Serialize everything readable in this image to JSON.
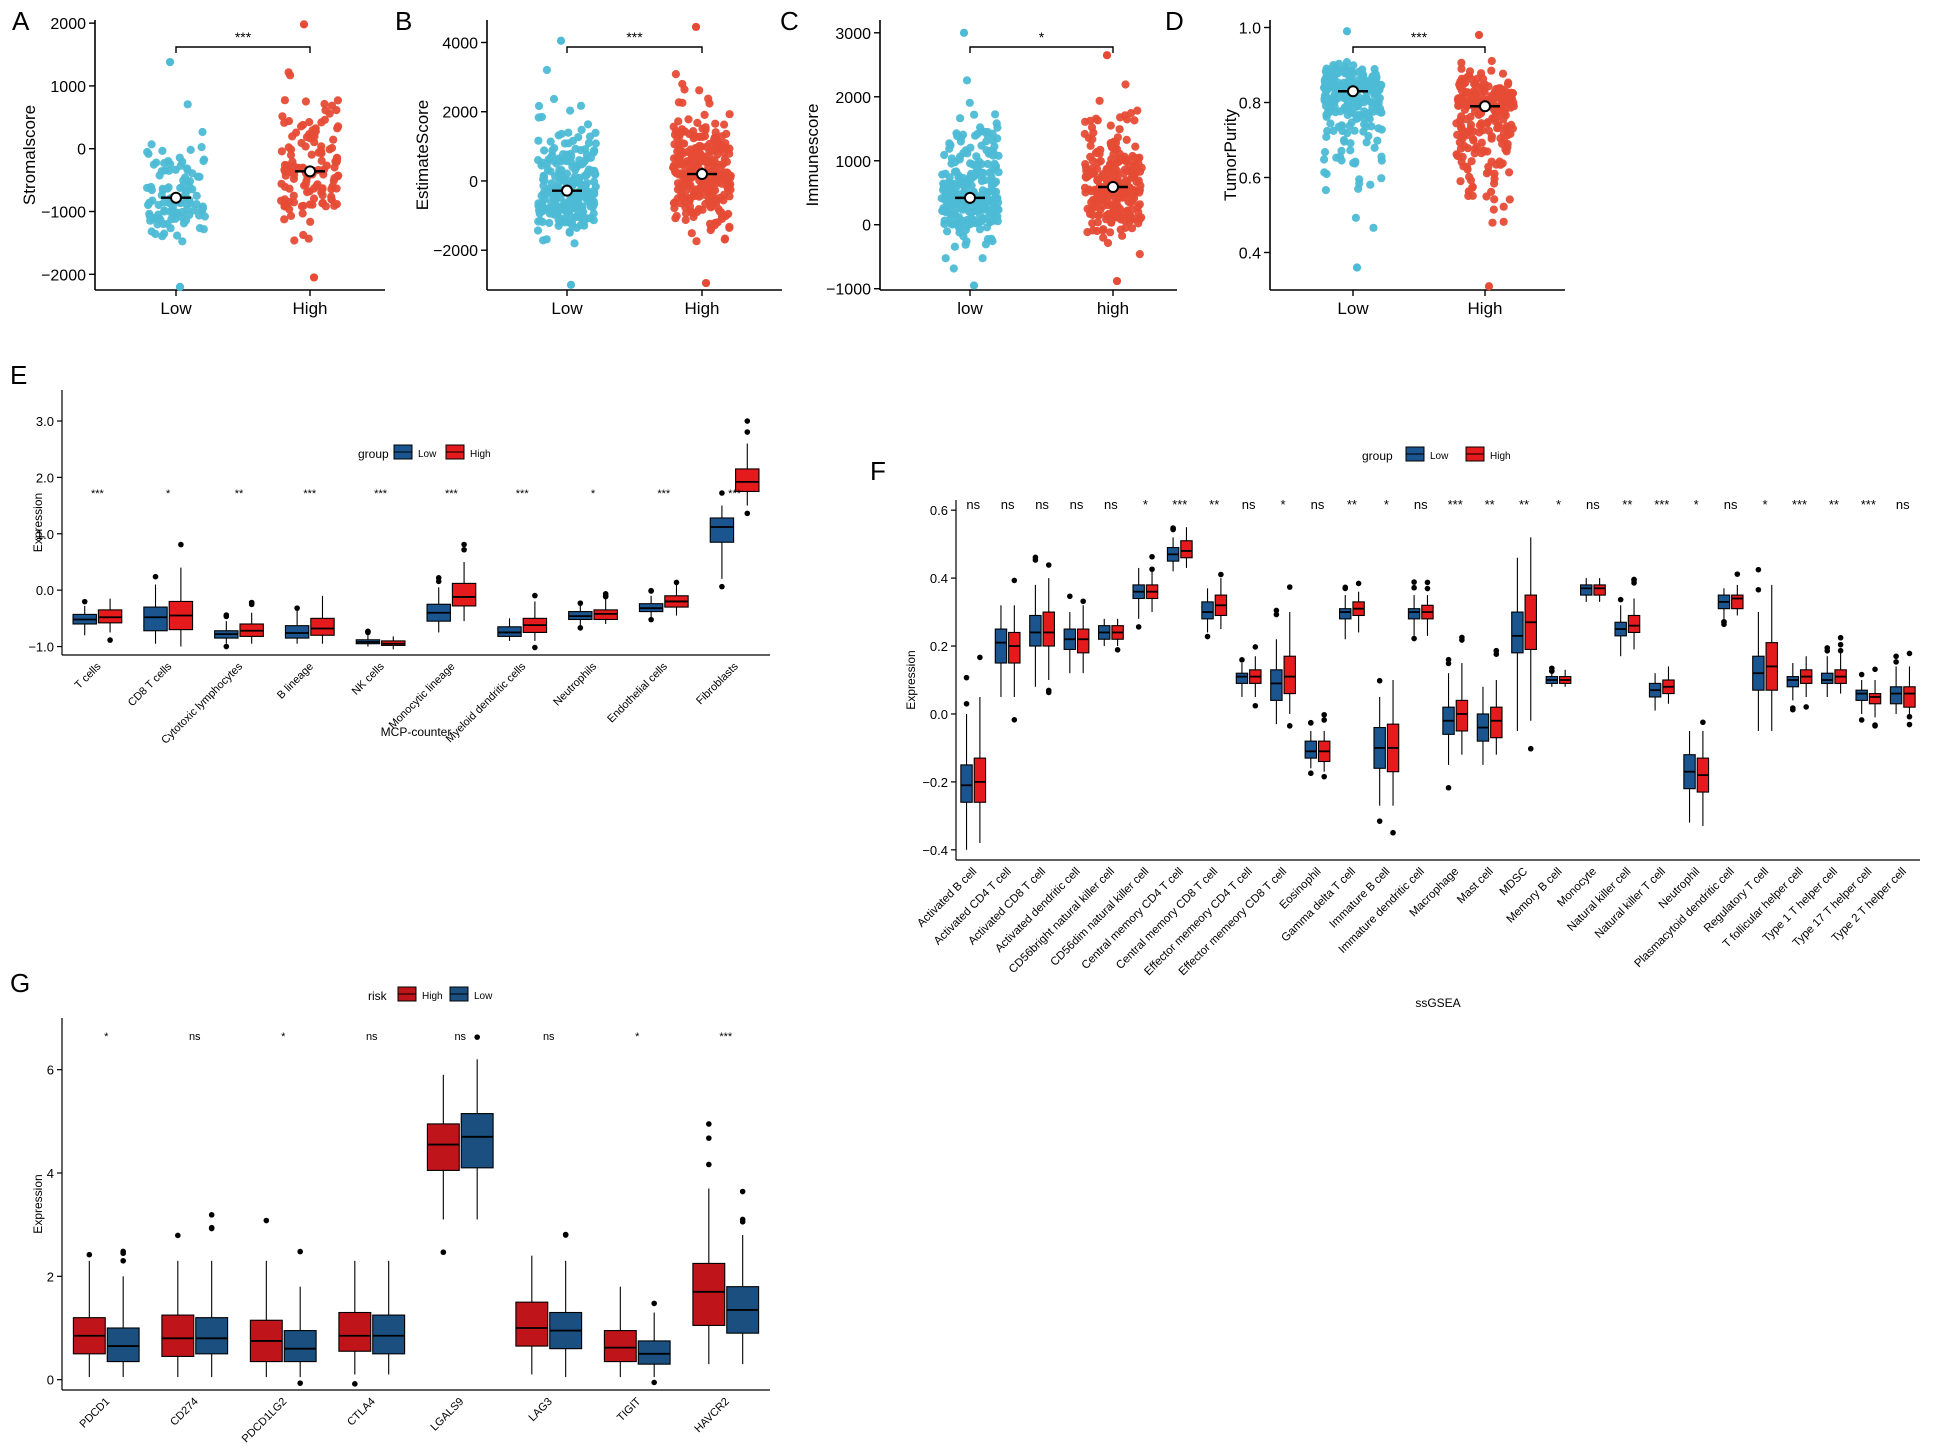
{
  "colors": {
    "low_scatter": "#4DBBD5",
    "high_scatter": "#E64B35",
    "low_box": "#1A5590",
    "high_box": "#E41A1C",
    "risk_high_box": "#C0141B",
    "risk_low_box": "#1A4F80"
  },
  "chart_data": [
    {
      "id": "A",
      "type": "scatter",
      "panel_label": "A",
      "ylabel": "Stromalscore",
      "xlabel": "",
      "categories": [
        "Low",
        "High"
      ],
      "ylim": [
        -2250,
        2050
      ],
      "yticks": [
        -2000,
        -1000,
        0,
        1000,
        2000
      ],
      "mean": [
        -780,
        -360
      ],
      "n": [
        110,
        130
      ],
      "ranges": [
        [
          -2200,
          1380
        ],
        [
          -2050,
          1980
        ]
      ],
      "significance": "***"
    },
    {
      "id": "B",
      "type": "scatter",
      "panel_label": "B",
      "ylabel": "EstimateScore",
      "xlabel": "",
      "categories": [
        "Low",
        "High"
      ],
      "ylim": [
        -3150,
        4650
      ],
      "yticks": [
        -2000,
        0,
        2000,
        4000
      ],
      "mean": [
        -280,
        200
      ],
      "n": [
        260,
        280
      ],
      "ranges": [
        [
          -3000,
          4050
        ],
        [
          -2950,
          4450
        ]
      ],
      "significance": "***"
    },
    {
      "id": "C",
      "type": "scatter",
      "panel_label": "C",
      "ylabel": "Immunescore",
      "xlabel": "",
      "categories": [
        "low",
        "high"
      ],
      "ylim": [
        -1020,
        3200
      ],
      "yticks": [
        -1000,
        0,
        1000,
        2000,
        3000
      ],
      "mean": [
        420,
        590
      ],
      "n": [
        250,
        260
      ],
      "ranges": [
        [
          -950,
          3000
        ],
        [
          -880,
          2650
        ]
      ],
      "significance": "*"
    },
    {
      "id": "D",
      "type": "scatter",
      "panel_label": "D",
      "ylabel": "TumorPurity",
      "xlabel": "",
      "categories": [
        "Low",
        "High"
      ],
      "ylim": [
        0.3,
        1.02
      ],
      "yticks": [
        0.4,
        0.6,
        0.8,
        1.0
      ],
      "mean": [
        0.83,
        0.79
      ],
      "n": [
        230,
        240
      ],
      "ranges": [
        [
          0.36,
          0.99
        ],
        [
          0.31,
          0.98
        ]
      ],
      "significance": "***"
    },
    {
      "id": "E",
      "type": "box",
      "panel_label": "E",
      "xlabel": "MCP-counter",
      "ylabel": "Expression",
      "legend_title": "group",
      "legend_labels": [
        "Low",
        "High"
      ],
      "ylim": [
        -1.15,
        3.55
      ],
      "yticks": [
        -1,
        0,
        1,
        2,
        3
      ],
      "categories": [
        "T cells",
        "CD8 T cells",
        "Cytotoxic lymphocytes",
        "B lineage",
        "NK cells",
        "Monocytic lineage",
        "Myeloid dendritic cells",
        "Neutrophils",
        "Endothelial cells",
        "Fibroblasts"
      ],
      "significance": [
        "***",
        "*",
        "**",
        "***",
        "***",
        "***",
        "***",
        "*",
        "***",
        "***"
      ],
      "series": [
        {
          "name": "Low",
          "boxes": [
            [
              -0.8,
              -0.6,
              -0.52,
              -0.43,
              -0.28
            ],
            [
              -0.95,
              -0.72,
              -0.48,
              -0.3,
              0.1
            ],
            [
              -0.95,
              -0.85,
              -0.78,
              -0.72,
              -0.55
            ],
            [
              -0.95,
              -0.85,
              -0.76,
              -0.63,
              -0.35
            ],
            [
              -1.0,
              -0.95,
              -0.92,
              -0.88,
              -0.8
            ],
            [
              -0.75,
              -0.55,
              -0.4,
              -0.25,
              0.05
            ],
            [
              -0.9,
              -0.82,
              -0.75,
              -0.65,
              -0.5
            ],
            [
              -0.62,
              -0.52,
              -0.46,
              -0.38,
              -0.25
            ],
            [
              -0.5,
              -0.38,
              -0.32,
              -0.24,
              -0.1
            ],
            [
              0.2,
              0.85,
              1.12,
              1.28,
              1.5
            ]
          ]
        },
        {
          "name": "High",
          "boxes": [
            [
              -0.75,
              -0.58,
              -0.48,
              -0.35,
              -0.15
            ],
            [
              -1.0,
              -0.7,
              -0.45,
              -0.2,
              0.4
            ],
            [
              -0.95,
              -0.82,
              -0.72,
              -0.6,
              -0.4
            ],
            [
              -0.95,
              -0.8,
              -0.68,
              -0.5,
              -0.1
            ],
            [
              -1.05,
              -0.98,
              -0.95,
              -0.9,
              -0.82
            ],
            [
              -0.55,
              -0.28,
              -0.12,
              0.12,
              0.5
            ],
            [
              -0.9,
              -0.75,
              -0.62,
              -0.5,
              -0.2
            ],
            [
              -0.6,
              -0.52,
              -0.42,
              -0.35,
              -0.15
            ],
            [
              -0.45,
              -0.3,
              -0.2,
              -0.1,
              0.1
            ],
            [
              1.5,
              1.75,
              1.92,
              2.15,
              2.6
            ]
          ]
        }
      ]
    },
    {
      "id": "F",
      "type": "box",
      "panel_label": "F",
      "xlabel": "ssGSEA",
      "ylabel": "Expression",
      "legend_title": "group",
      "legend_labels": [
        "Low",
        "High"
      ],
      "ylim": [
        -0.43,
        0.63
      ],
      "yticks": [
        -0.4,
        -0.2,
        0.0,
        0.2,
        0.4,
        0.6
      ],
      "categories": [
        "Activated B cell",
        "Activated CD4 T cell",
        "Activated CD8 T cell",
        "Activated dendritic cell",
        "CD56bright natural killer cell",
        "CD56dim natural killer cell",
        "Central memory CD4 T cell",
        "Central memory CD8 T cell",
        "Effector memeory CD4 T cell",
        "Effector memeory CD8 T cell",
        "Eosinophil",
        "Gamma delta T cell",
        "Immature  B cell",
        "Immature dendritic cell",
        "Macrophage",
        "Mast cell",
        "MDSC",
        "Memory B cell",
        "Monocyte",
        "Natural killer cell",
        "Natural killer T cell",
        "Neutrophil",
        "Plasmacytoid dendritic cell",
        "Regulatory T cell",
        "T follicular helper cell",
        "Type 1 T helper cell",
        "Type 17 T helper cell",
        "Type 2 T helper cell"
      ],
      "significance": [
        "ns",
        "ns",
        "ns",
        "ns",
        "ns",
        "*",
        "***",
        "**",
        "ns",
        "*",
        "ns",
        "**",
        "*",
        "ns",
        "***",
        "**",
        "**",
        "*",
        "ns",
        "**",
        "***",
        "*",
        "ns",
        "*",
        "***",
        "**",
        "***",
        "ns"
      ],
      "series": [
        {
          "name": "Low",
          "boxes": [
            [
              -0.4,
              -0.26,
              -0.21,
              -0.15,
              0.0
            ],
            [
              0.05,
              0.15,
              0.21,
              0.25,
              0.32
            ],
            [
              0.08,
              0.2,
              0.24,
              0.29,
              0.38
            ],
            [
              0.12,
              0.19,
              0.22,
              0.25,
              0.3
            ],
            [
              0.2,
              0.22,
              0.24,
              0.26,
              0.28
            ],
            [
              0.28,
              0.34,
              0.36,
              0.38,
              0.43
            ],
            [
              0.42,
              0.45,
              0.47,
              0.49,
              0.52
            ],
            [
              0.24,
              0.28,
              0.3,
              0.33,
              0.37
            ],
            [
              0.05,
              0.09,
              0.11,
              0.12,
              0.15
            ],
            [
              -0.03,
              0.04,
              0.09,
              0.13,
              0.22
            ],
            [
              -0.16,
              -0.13,
              -0.11,
              -0.08,
              -0.05
            ],
            [
              0.22,
              0.28,
              0.3,
              0.31,
              0.35
            ],
            [
              -0.27,
              -0.16,
              -0.1,
              -0.04,
              0.05
            ],
            [
              0.23,
              0.28,
              0.3,
              0.31,
              0.35
            ],
            [
              -0.15,
              -0.06,
              -0.02,
              0.02,
              0.12
            ],
            [
              -0.15,
              -0.08,
              -0.04,
              0.0,
              0.08
            ],
            [
              -0.05,
              0.18,
              0.23,
              0.3,
              0.46
            ],
            [
              0.08,
              0.09,
              0.1,
              0.11,
              0.12
            ],
            [
              0.33,
              0.35,
              0.37,
              0.38,
              0.4
            ],
            [
              0.17,
              0.23,
              0.25,
              0.27,
              0.32
            ],
            [
              0.01,
              0.05,
              0.07,
              0.09,
              0.12
            ],
            [
              -0.32,
              -0.22,
              -0.17,
              -0.12,
              -0.05
            ],
            [
              0.28,
              0.31,
              0.33,
              0.35,
              0.37
            ],
            [
              -0.05,
              0.07,
              0.12,
              0.17,
              0.3
            ],
            [
              0.04,
              0.08,
              0.1,
              0.11,
              0.15
            ],
            [
              0.05,
              0.09,
              0.1,
              0.12,
              0.17
            ],
            [
              0.0,
              0.04,
              0.06,
              0.07,
              0.1
            ],
            [
              0.0,
              0.03,
              0.06,
              0.08,
              0.14
            ]
          ]
        },
        {
          "name": "High",
          "boxes": [
            [
              -0.38,
              -0.26,
              -0.2,
              -0.13,
              0.05
            ],
            [
              0.05,
              0.15,
              0.2,
              0.24,
              0.32
            ],
            [
              0.1,
              0.2,
              0.24,
              0.3,
              0.4
            ],
            [
              0.12,
              0.18,
              0.22,
              0.25,
              0.32
            ],
            [
              0.2,
              0.22,
              0.24,
              0.26,
              0.28
            ],
            [
              0.3,
              0.34,
              0.36,
              0.38,
              0.42
            ],
            [
              0.43,
              0.46,
              0.48,
              0.51,
              0.55
            ],
            [
              0.25,
              0.29,
              0.32,
              0.35,
              0.4
            ],
            [
              0.05,
              0.09,
              0.11,
              0.13,
              0.17
            ],
            [
              0.0,
              0.06,
              0.11,
              0.17,
              0.3
            ],
            [
              -0.17,
              -0.14,
              -0.11,
              -0.08,
              -0.05
            ],
            [
              0.24,
              0.29,
              0.31,
              0.33,
              0.36
            ],
            [
              -0.27,
              -0.17,
              -0.1,
              -0.03,
              0.1
            ],
            [
              0.23,
              0.28,
              0.3,
              0.32,
              0.35
            ],
            [
              -0.12,
              -0.05,
              0.0,
              0.04,
              0.15
            ],
            [
              -0.12,
              -0.07,
              -0.02,
              0.02,
              0.1
            ],
            [
              -0.02,
              0.19,
              0.27,
              0.35,
              0.52
            ],
            [
              0.08,
              0.09,
              0.1,
              0.11,
              0.13
            ],
            [
              0.33,
              0.35,
              0.37,
              0.38,
              0.4
            ],
            [
              0.19,
              0.24,
              0.26,
              0.29,
              0.34
            ],
            [
              0.03,
              0.06,
              0.08,
              0.1,
              0.14
            ],
            [
              -0.33,
              -0.23,
              -0.18,
              -0.13,
              -0.05
            ],
            [
              0.29,
              0.31,
              0.34,
              0.35,
              0.38
            ],
            [
              -0.05,
              0.07,
              0.14,
              0.21,
              0.38
            ],
            [
              0.05,
              0.09,
              0.11,
              0.13,
              0.17
            ],
            [
              0.06,
              0.09,
              0.11,
              0.13,
              0.18
            ],
            [
              -0.01,
              0.03,
              0.05,
              0.06,
              0.1
            ],
            [
              0.0,
              0.02,
              0.06,
              0.08,
              0.14
            ]
          ]
        }
      ]
    },
    {
      "id": "G",
      "type": "box",
      "panel_label": "G",
      "xlabel": "",
      "ylabel": "Expression",
      "legend_title": "risk",
      "legend_labels": [
        "High",
        "Low"
      ],
      "ylim": [
        -0.2,
        7.0
      ],
      "yticks": [
        0,
        2,
        4,
        6
      ],
      "categories": [
        "PDCD1",
        "CD274",
        "PDCD1LG2",
        "CTLA4",
        "LGALS9",
        "LAG3",
        "TIGIT",
        "HAVCR2"
      ],
      "significance": [
        "*",
        "ns",
        "*",
        "ns",
        "ns",
        "ns",
        "*",
        "***"
      ],
      "series": [
        {
          "name": "High",
          "boxes": [
            [
              0.05,
              0.5,
              0.85,
              1.2,
              2.3
            ],
            [
              0.05,
              0.45,
              0.8,
              1.25,
              2.3
            ],
            [
              0.05,
              0.35,
              0.75,
              1.15,
              2.3
            ],
            [
              0.1,
              0.55,
              0.85,
              1.3,
              2.3
            ],
            [
              3.1,
              4.05,
              4.55,
              4.95,
              5.9
            ],
            [
              0.1,
              0.65,
              1.0,
              1.5,
              2.4
            ],
            [
              0.05,
              0.35,
              0.62,
              0.95,
              1.8
            ],
            [
              0.3,
              1.05,
              1.7,
              2.25,
              3.7
            ]
          ]
        },
        {
          "name": "Low",
          "boxes": [
            [
              0.05,
              0.35,
              0.65,
              1.0,
              2.0
            ],
            [
              0.05,
              0.5,
              0.8,
              1.2,
              2.3
            ],
            [
              0.05,
              0.35,
              0.6,
              0.95,
              1.8
            ],
            [
              0.1,
              0.5,
              0.85,
              1.25,
              2.3
            ],
            [
              3.1,
              4.1,
              4.7,
              5.15,
              6.2
            ],
            [
              0.05,
              0.6,
              0.95,
              1.3,
              2.3
            ],
            [
              0.05,
              0.3,
              0.5,
              0.75,
              1.3
            ],
            [
              0.3,
              0.9,
              1.35,
              1.8,
              2.8
            ]
          ]
        }
      ]
    }
  ]
}
